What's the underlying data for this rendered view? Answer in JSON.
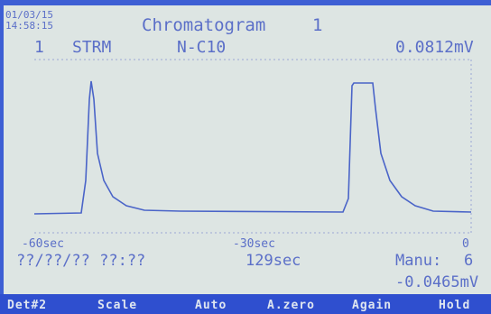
{
  "header": {
    "date": "01/03/15",
    "time": "14:58:15",
    "title": "Chromatogram",
    "number": "1"
  },
  "status": {
    "stream": "1",
    "label": "STRM",
    "component": "N-C10",
    "max": "0.0812mV"
  },
  "axis": {
    "ticks": [
      "-60sec",
      "-30sec",
      "0"
    ]
  },
  "footer": {
    "datetime": "??/??/?? ??:??",
    "elapsed": "129sec",
    "mode": "Manu:",
    "mode_value": "6",
    "min": "-0.0465mV"
  },
  "buttons": [
    "Det#2",
    "Scale",
    "Auto",
    "A.zero",
    "Again",
    "Hold"
  ]
}
